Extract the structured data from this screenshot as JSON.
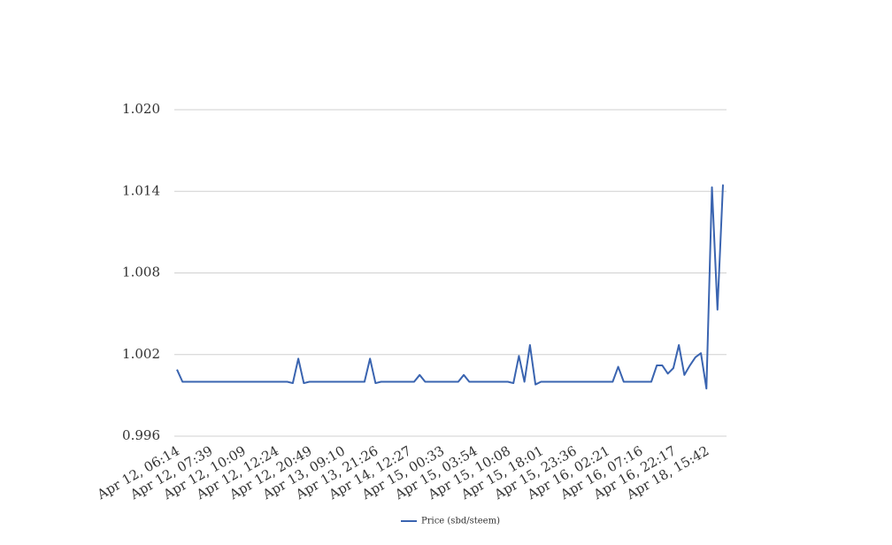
{
  "chart_data": {
    "type": "line",
    "categories": [
      "Apr 12, 06:14",
      null,
      null,
      null,
      null,
      null,
      "Apr 12, 07:39",
      null,
      null,
      null,
      null,
      null,
      "Apr 12, 10:09",
      null,
      null,
      null,
      null,
      null,
      "Apr 12, 12:24",
      null,
      null,
      null,
      null,
      null,
      "Apr 12, 20:49",
      null,
      null,
      null,
      null,
      null,
      "Apr 13, 09:10",
      null,
      null,
      null,
      null,
      null,
      "Apr 13, 21:26",
      null,
      null,
      null,
      null,
      null,
      "Apr 14, 12:27",
      null,
      null,
      null,
      null,
      null,
      "Apr 15, 00:33",
      null,
      null,
      null,
      null,
      null,
      "Apr 15, 03:54",
      null,
      null,
      null,
      null,
      null,
      "Apr 15, 10:08",
      null,
      null,
      null,
      null,
      null,
      "Apr 15, 18:01",
      null,
      null,
      null,
      null,
      null,
      "Apr 15, 23:36",
      null,
      null,
      null,
      null,
      null,
      "Apr 16, 02:21",
      null,
      null,
      null,
      null,
      null,
      "Apr 16, 07:16",
      null,
      null,
      null,
      null,
      null,
      "Apr 16, 22:17",
      null,
      null,
      null,
      null,
      null,
      "Apr 18, 15:42",
      null,
      null,
      null
    ],
    "series": [
      {
        "name": "Price (sbd/steem)",
        "color": "#3a64b0",
        "values": [
          1.0009,
          1.0,
          1.0,
          1.0,
          1.0,
          1.0,
          1.0,
          1.0,
          1.0,
          1.0,
          1.0,
          1.0,
          1.0,
          1.0,
          1.0,
          1.0,
          1.0,
          1.0,
          1.0,
          1.0,
          1.0,
          0.9999,
          1.0017,
          0.9999,
          1.0,
          1.0,
          1.0,
          1.0,
          1.0,
          1.0,
          1.0,
          1.0,
          1.0,
          1.0,
          1.0,
          1.0017,
          0.9999,
          1.0,
          1.0,
          1.0,
          1.0,
          1.0,
          1.0,
          1.0,
          1.0005,
          1.0,
          1.0,
          1.0,
          1.0,
          1.0,
          1.0,
          1.0,
          1.0005,
          1.0,
          1.0,
          1.0,
          1.0,
          1.0,
          1.0,
          1.0,
          1.0,
          0.9999,
          1.0019,
          1.0,
          1.0027,
          0.9998,
          1.0,
          1.0,
          1.0,
          1.0,
          1.0,
          1.0,
          1.0,
          1.0,
          1.0,
          1.0,
          1.0,
          1.0,
          1.0,
          1.0,
          1.0011,
          1.0,
          1.0,
          1.0,
          1.0,
          1.0,
          1.0,
          1.0012,
          1.0012,
          1.0006,
          1.001,
          1.0027,
          1.0005,
          1.0012,
          1.0018,
          1.0021,
          0.9995,
          1.0143,
          1.0053,
          1.0145
        ]
      }
    ],
    "ylim": [
      0.996,
      1.02
    ],
    "yticks": [
      0.996,
      1.002,
      1.008,
      1.014,
      {
        "value": 1.02,
        "label": "1.020"
      }
    ],
    "grid": true
  }
}
